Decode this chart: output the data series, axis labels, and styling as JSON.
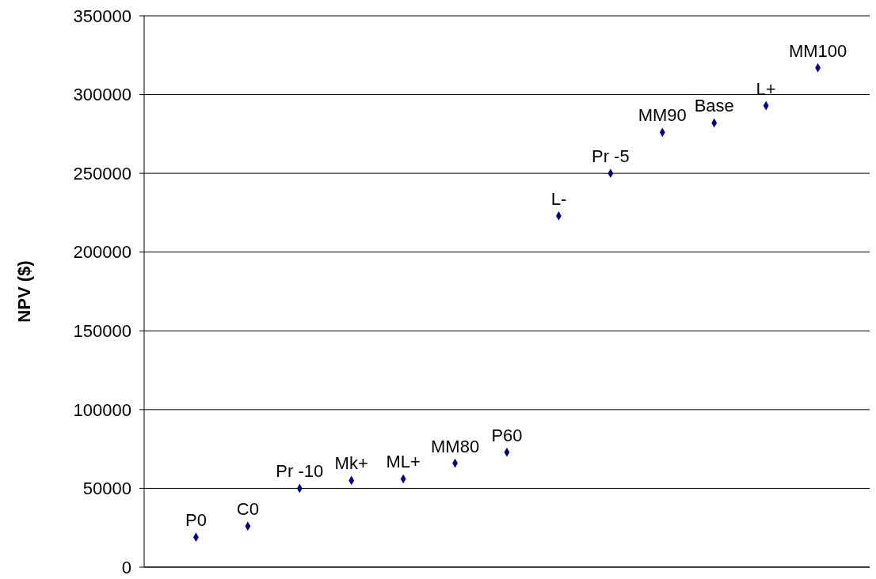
{
  "chart_data": {
    "type": "scatter",
    "ylabel": "NPV ($)",
    "categories": [
      null,
      null,
      null,
      null,
      null,
      null,
      null,
      null,
      null,
      null,
      null,
      null,
      null
    ],
    "values": [
      19000,
      26000,
      50000,
      55000,
      56000,
      66000,
      73000,
      223000,
      250000,
      276000,
      282000,
      293000,
      317000
    ],
    "annotations": [
      {
        "text": "P0",
        "y": 19000
      },
      {
        "text": "C0",
        "y": 26000
      },
      {
        "text": "Pr -10",
        "y": 50000
      },
      {
        "text": "Mk+",
        "y": 55000
      },
      {
        "text": "ML+",
        "y": 56000
      },
      {
        "text": "MM80",
        "y": 66000
      },
      {
        "text": "P60",
        "y": 73000
      },
      {
        "text": "L-",
        "y": 223000
      },
      {
        "text": "Pr -5",
        "y": 250000
      },
      {
        "text": "MM90",
        "y": 276000
      },
      {
        "text": "Base",
        "y": 282000
      },
      {
        "text": "L+",
        "y": 293000
      },
      {
        "text": "MM100",
        "y": 317000
      }
    ],
    "color": "#000080",
    "marker": "diamond",
    "ylim": [
      0,
      350000
    ],
    "yticks": [
      0,
      50000,
      100000,
      150000,
      200000,
      250000,
      300000,
      350000
    ],
    "grid": "y"
  }
}
